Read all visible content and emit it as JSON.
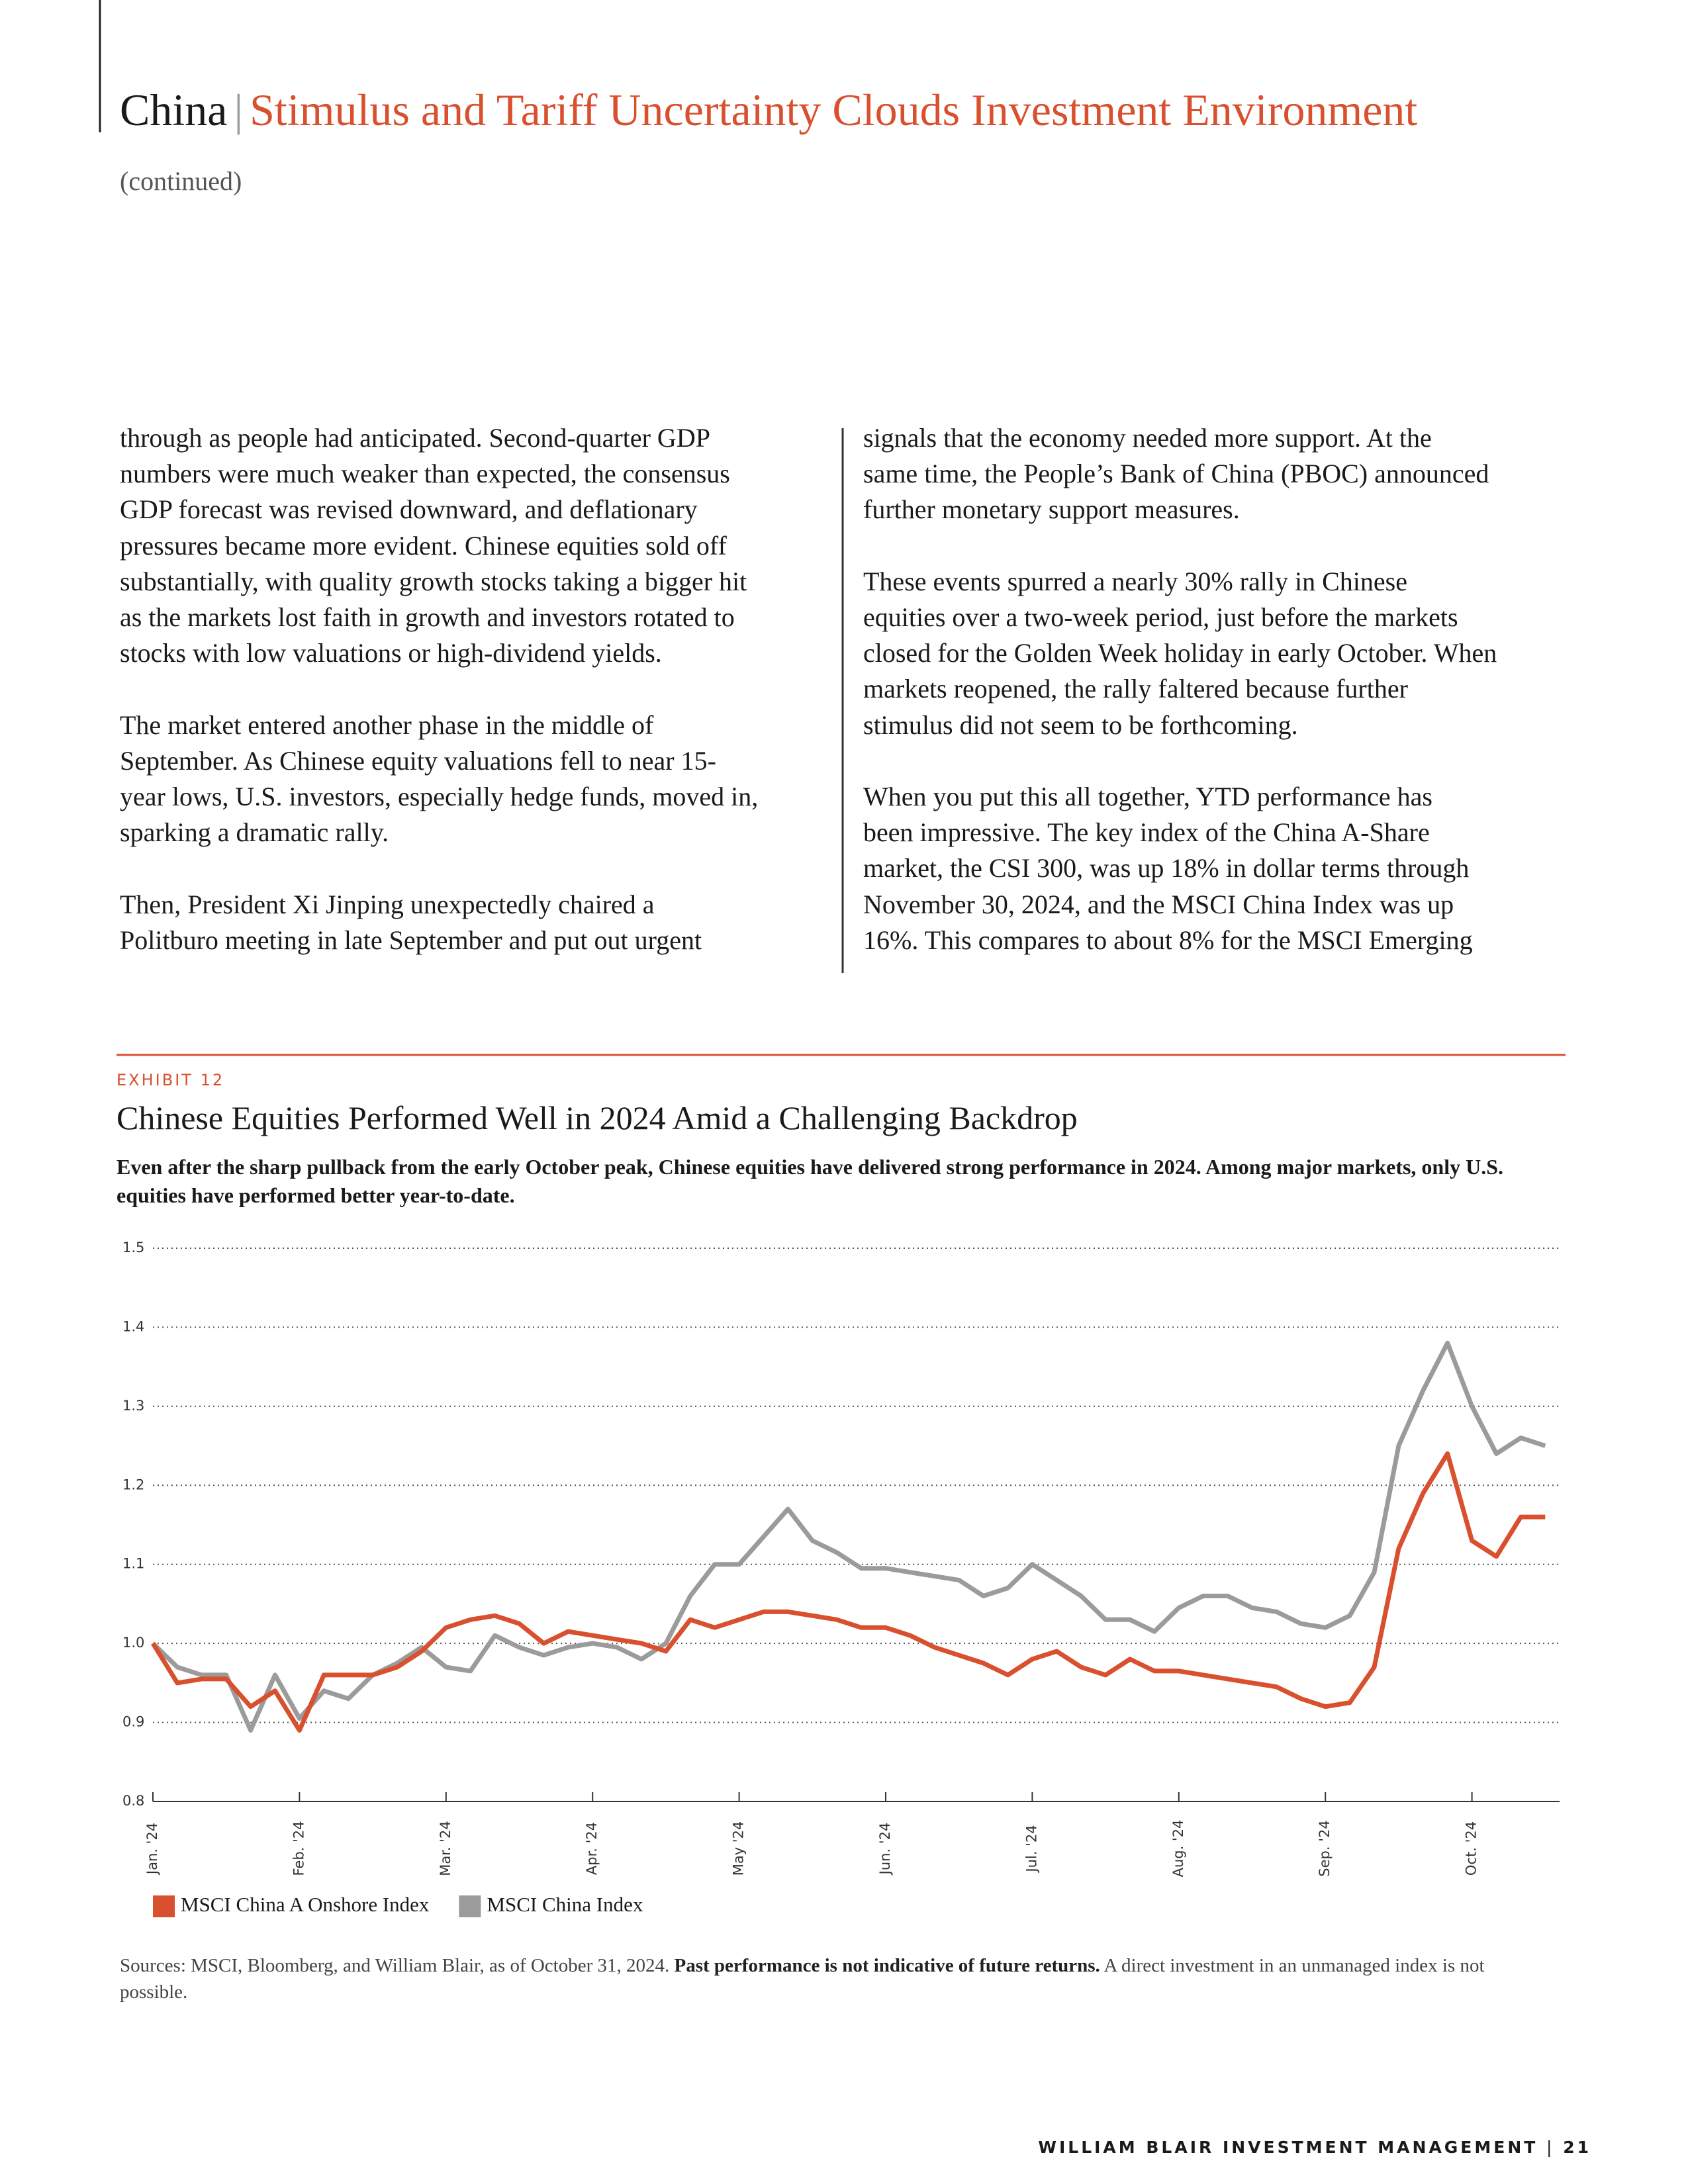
{
  "header": {
    "country": "China",
    "separator": "|",
    "title": "Stimulus and Tariff Uncertainty Clouds Investment Environment",
    "subtitle": "(continued)"
  },
  "body": {
    "left_column": [
      [
        "through as people had anticipated. Second-quarter GDP",
        "numbers were much weaker than expected, the consensus",
        "GDP forecast was revised downward, and deflationary",
        "pressures became more evident. Chinese equities sold off",
        "substantially, with quality growth stocks taking a bigger hit",
        "as the markets lost faith in growth and investors rotated to",
        "stocks with low valuations or high-dividend yields."
      ],
      [
        "The market entered another phase in the middle of",
        "September. As Chinese equity valuations fell to near 15-",
        "year lows, U.S. investors, especially hedge funds, moved in,",
        "sparking a dramatic rally."
      ],
      [
        "Then, President Xi Jinping unexpectedly chaired a",
        "Politburo meeting in late September and put out urgent"
      ]
    ],
    "right_column": [
      [
        "signals that the economy needed more support. At the",
        "same time, the People’s Bank of China (PBOC) announced",
        "further monetary support measures."
      ],
      [
        "These events spurred a nearly 30% rally in Chinese",
        "equities over a two-week period, just before the markets",
        "closed for the Golden Week holiday in early October. When",
        "markets reopened, the rally faltered because further",
        "stimulus did not seem to be forthcoming."
      ],
      [
        "When you put this all together, YTD performance has",
        "been impressive. The key index of the China A-Share",
        "market, the CSI 300, was up 18% in dollar terms through",
        "November 30, 2024, and the MSCI China Index was up",
        "16%. This compares to about 8% for the MSCI Emerging"
      ]
    ]
  },
  "exhibit": {
    "label": "EXHIBIT 12"
  },
  "chart_data": {
    "type": "line",
    "title": "Chinese Equities Performed Well in 2024 Amid a Challenging Backdrop",
    "subtitle": "Even after the sharp pullback from the early October peak, Chinese equities have delivered strong performance in 2024. Among major markets, only U.S. equities have performed better year-to-date.",
    "categories": [
      "Jan. '24",
      null,
      null,
      null,
      null,
      null,
      "Feb. '24",
      null,
      null,
      null,
      null,
      null,
      "Mar. '24",
      null,
      null,
      null,
      null,
      null,
      "Apr. '24",
      null,
      null,
      null,
      null,
      null,
      "May '24",
      null,
      null,
      null,
      null,
      null,
      "Jun. '24",
      null,
      null,
      null,
      null,
      null,
      "Jul. '24",
      null,
      null,
      null,
      null,
      null,
      "Aug. '24",
      null,
      null,
      null,
      null,
      null,
      "Sep. '24",
      null,
      null,
      null,
      null,
      null,
      "Oct. '24",
      null,
      null,
      null
    ],
    "series": [
      {
        "name": "MSCI China A Onshore Index",
        "color": "#d9502f",
        "values": [
          1.0,
          0.95,
          0.955,
          0.955,
          0.92,
          0.94,
          0.89,
          0.96,
          0.96,
          0.96,
          0.97,
          0.99,
          1.02,
          1.03,
          1.035,
          1.025,
          1.0,
          1.015,
          1.01,
          1.005,
          1.0,
          0.99,
          1.03,
          1.02,
          1.03,
          1.04,
          1.04,
          1.035,
          1.03,
          1.02,
          1.02,
          1.01,
          0.995,
          0.985,
          0.975,
          0.96,
          0.98,
          0.99,
          0.97,
          0.96,
          0.98,
          0.965,
          0.965,
          0.96,
          0.955,
          0.95,
          0.945,
          0.93,
          0.92,
          0.925,
          0.97,
          1.12,
          1.19,
          1.24,
          1.13,
          1.11,
          1.16,
          1.16
        ]
      },
      {
        "name": "MSCI China Index",
        "color": "#9b9b9b",
        "values": [
          1.0,
          0.97,
          0.96,
          0.96,
          0.89,
          0.96,
          0.905,
          0.94,
          0.93,
          0.96,
          0.975,
          0.995,
          0.97,
          0.965,
          1.01,
          0.995,
          0.985,
          0.995,
          1.0,
          0.995,
          0.98,
          1.0,
          1.06,
          1.1,
          1.1,
          1.135,
          1.17,
          1.13,
          1.115,
          1.095,
          1.095,
          1.09,
          1.085,
          1.08,
          1.06,
          1.07,
          1.1,
          1.08,
          1.06,
          1.03,
          1.03,
          1.015,
          1.045,
          1.06,
          1.06,
          1.045,
          1.04,
          1.025,
          1.02,
          1.035,
          1.09,
          1.25,
          1.32,
          1.38,
          1.3,
          1.24,
          1.26,
          1.25
        ]
      }
    ],
    "ylim": [
      0.8,
      1.5
    ],
    "yticks": [
      0.8,
      0.9,
      {
        "value": 1,
        "label": "1.0"
      },
      1.1,
      1.2,
      1.3,
      1.4,
      1.5
    ],
    "grid": true,
    "legend": "bottom-left"
  },
  "sources": {
    "text": "Sources: MSCI, Bloomberg, and William Blair, as of October 31, 2024.",
    "emphasis": "Past performance is not indicative of future returns.",
    "note": "A direct investment in an unmanaged index is not possible."
  },
  "footer": {
    "brand": "WILLIAM BLAIR INVESTMENT MANAGEMENT",
    "separator": "|",
    "page": "21"
  }
}
